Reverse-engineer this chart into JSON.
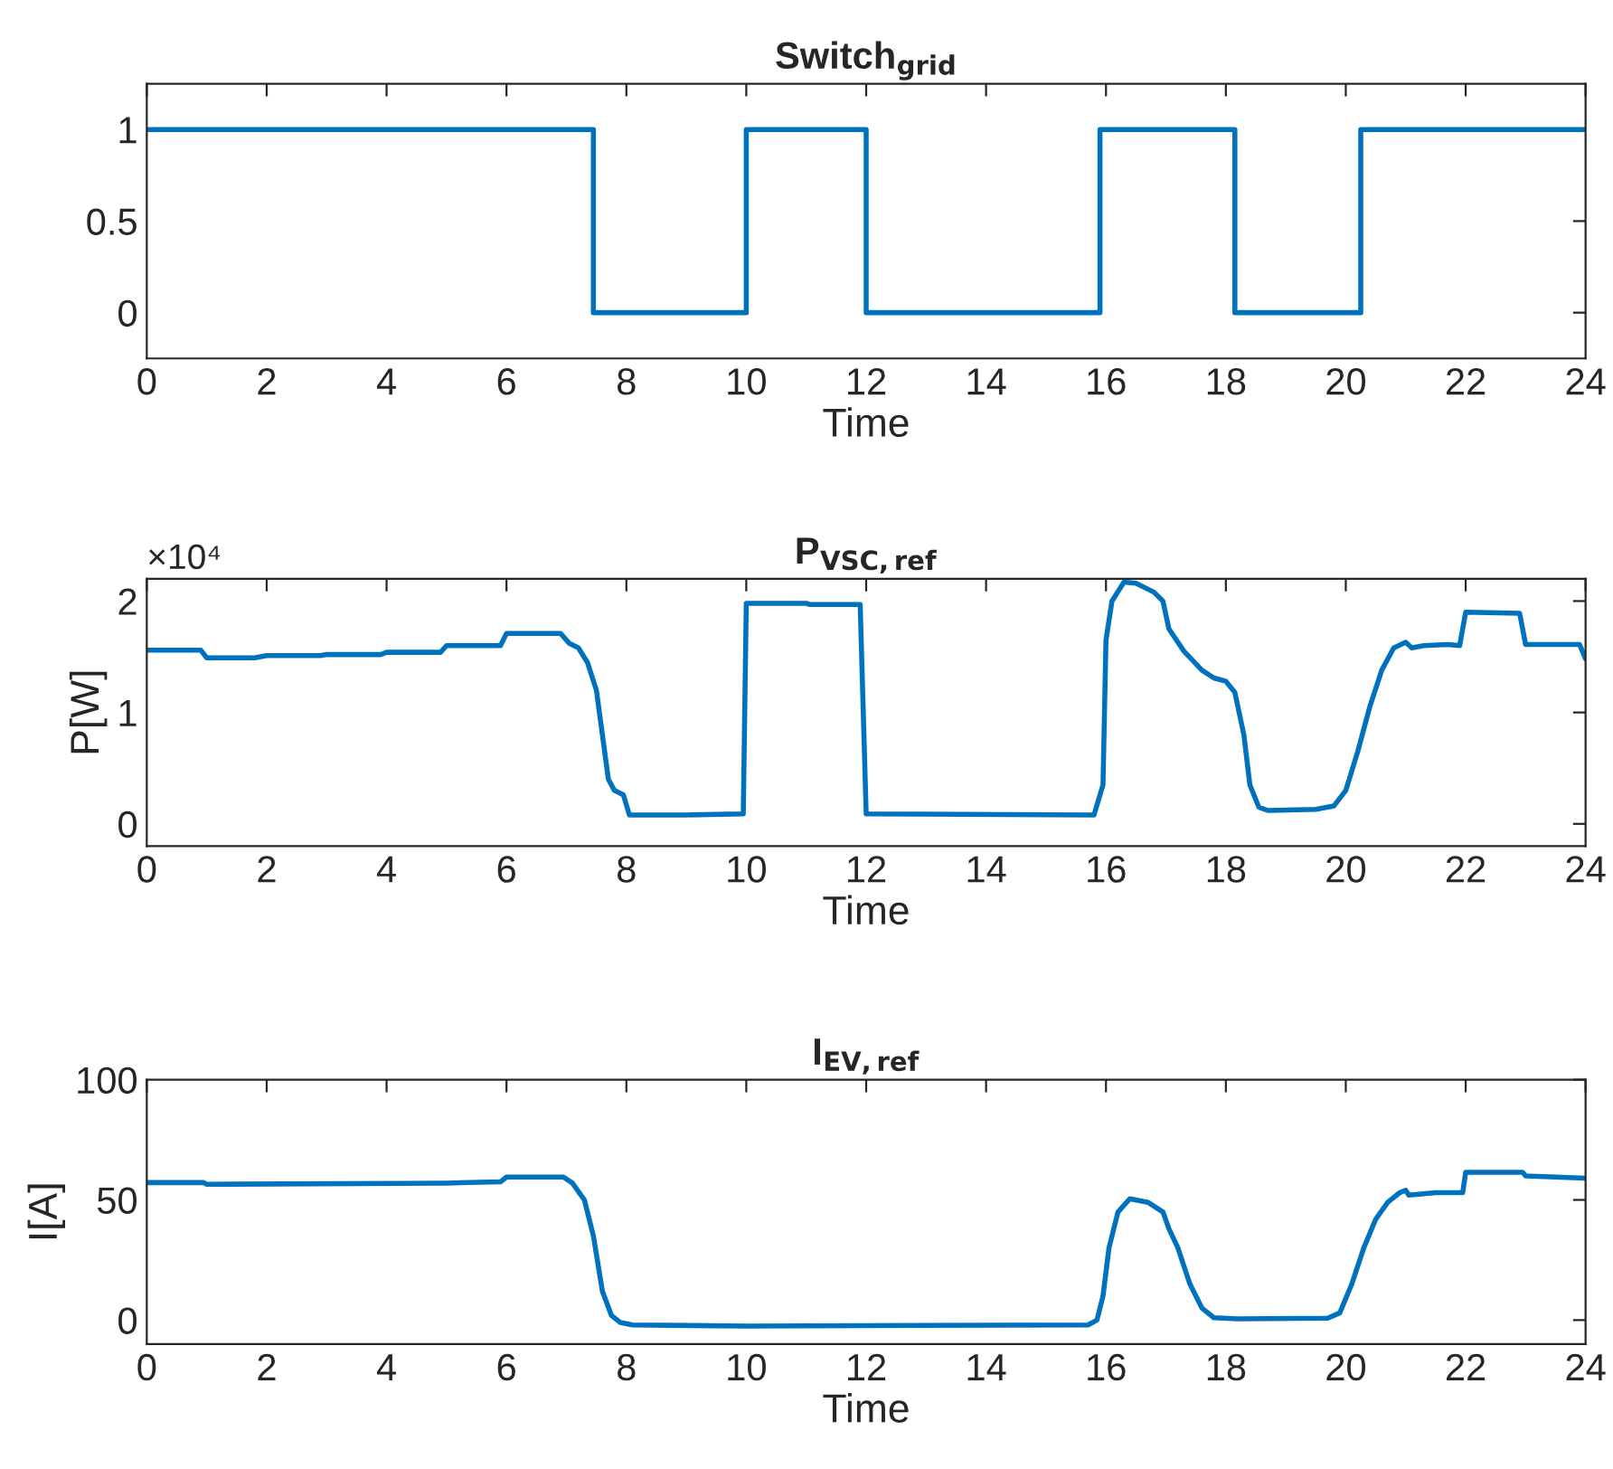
{
  "chart_data": [
    {
      "type": "step",
      "title": "Switch$_{grid}$",
      "xlabel": "Time",
      "grid": false,
      "color": "#0072bd",
      "x": [
        0,
        7.45,
        10,
        12,
        15.9,
        18.15,
        20.25,
        24
      ],
      "values": [
        1,
        0,
        1,
        0,
        1,
        0,
        1,
        1
      ],
      "xlim": [
        0,
        24
      ],
      "xticks": [
        0,
        2,
        4,
        6,
        8,
        10,
        12,
        14,
        16,
        18,
        20,
        22,
        24
      ],
      "ylim": [
        -0.25,
        1.25
      ],
      "yticks": [
        0,
        0.5,
        1
      ]
    },
    {
      "type": "line",
      "title": "P$_{VSC,ref}$",
      "xlabel": "Time",
      "ylabel": "P[W]",
      "grid": false,
      "color": "#0072bd",
      "annotations": [
        "×10⁴"
      ],
      "x": [
        0,
        0.9,
        1,
        1.8,
        2,
        2.9,
        3,
        3.9,
        4,
        4.9,
        5,
        5.9,
        6,
        6.9,
        7.05,
        7.2,
        7.35,
        7.5,
        7.6,
        7.7,
        7.8,
        7.95,
        8.05,
        9,
        9.95,
        10.0,
        11,
        11.05,
        11.9,
        12.0,
        15.8,
        15.95,
        16.0,
        16.1,
        16.3,
        16.5,
        16.8,
        16.95,
        17.05,
        17.3,
        17.6,
        17.8,
        18.0,
        18.15,
        18.3,
        18.4,
        18.55,
        18.7,
        19.5,
        19.8,
        20.0,
        20.2,
        20.4,
        20.6,
        20.8,
        21.0,
        21.1,
        21.3,
        21.7,
        21.9,
        22.0,
        22.9,
        23.0,
        23.9,
        24
      ],
      "values": [
        1.56,
        1.56,
        1.49,
        1.49,
        1.51,
        1.51,
        1.52,
        1.52,
        1.54,
        1.54,
        1.6,
        1.6,
        1.71,
        1.71,
        1.62,
        1.58,
        1.45,
        1.2,
        0.8,
        0.4,
        0.3,
        0.26,
        0.08,
        0.08,
        0.09,
        1.98,
        1.98,
        1.97,
        1.97,
        0.09,
        0.08,
        0.35,
        1.65,
        2.0,
        2.17,
        2.16,
        2.08,
        2.0,
        1.75,
        1.55,
        1.38,
        1.31,
        1.28,
        1.18,
        0.8,
        0.35,
        0.15,
        0.12,
        0.13,
        0.16,
        0.3,
        0.65,
        1.05,
        1.38,
        1.58,
        1.63,
        1.58,
        1.6,
        1.61,
        1.6,
        1.9,
        1.89,
        1.61,
        1.61,
        1.48
      ],
      "xlim": [
        0,
        24
      ],
      "xticks": [
        0,
        2,
        4,
        6,
        8,
        10,
        12,
        14,
        16,
        18,
        20,
        22,
        24
      ],
      "ylim": [
        -0.2,
        2.2
      ],
      "yticks": [
        0,
        1,
        2
      ]
    },
    {
      "type": "line",
      "title": "I$_{EV,ref}$",
      "xlabel": "Time",
      "ylabel": "I[A]",
      "grid": false,
      "color": "#0072bd",
      "x": [
        0,
        0.95,
        1.0,
        5,
        5.9,
        6,
        6.95,
        7.1,
        7.3,
        7.45,
        7.6,
        7.75,
        7.9,
        8.1,
        10,
        12,
        15.7,
        15.85,
        15.95,
        16.05,
        16.2,
        16.4,
        16.7,
        16.95,
        17.05,
        17.2,
        17.4,
        17.6,
        17.8,
        18.2,
        19.7,
        19.9,
        20.1,
        20.3,
        20.5,
        20.7,
        20.9,
        21.0,
        21.05,
        21.5,
        21.95,
        22.0,
        22.95,
        23.0,
        24
      ],
      "values": [
        57.2,
        57.2,
        56.5,
        57,
        57.5,
        59.5,
        59.5,
        57,
        50,
        35,
        12,
        2,
        -1,
        -2,
        -2.5,
        -2.3,
        -2,
        0,
        10,
        30,
        45,
        50.5,
        49,
        45,
        38,
        30,
        15,
        5,
        1,
        0.5,
        0.8,
        3,
        15,
        30,
        42,
        49,
        53,
        54,
        52,
        53,
        53,
        61.5,
        61.5,
        60,
        59
      ],
      "xlim": [
        0,
        24
      ],
      "xticks": [
        0,
        2,
        4,
        6,
        8,
        10,
        12,
        14,
        16,
        18,
        20,
        22,
        24
      ],
      "ylim": [
        -10,
        100
      ],
      "yticks": [
        0,
        50,
        100
      ]
    }
  ]
}
